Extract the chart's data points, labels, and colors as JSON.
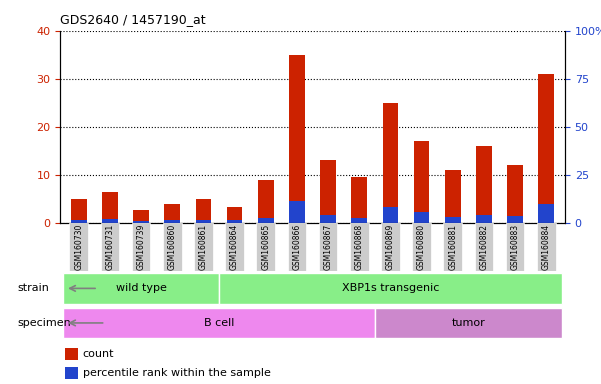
{
  "title": "GDS2640 / 1457190_at",
  "samples": [
    "GSM160730",
    "GSM160731",
    "GSM160739",
    "GSM160860",
    "GSM160861",
    "GSM160864",
    "GSM160865",
    "GSM160866",
    "GSM160867",
    "GSM160868",
    "GSM160869",
    "GSM160880",
    "GSM160881",
    "GSM160882",
    "GSM160883",
    "GSM160884"
  ],
  "count": [
    5,
    6.5,
    2.7,
    4,
    5,
    3.2,
    9,
    35,
    13,
    9.5,
    25,
    17,
    11,
    16,
    12,
    31
  ],
  "percentile": [
    1.5,
    2,
    1,
    1.2,
    1.4,
    1.2,
    2.5,
    11.5,
    4,
    2.5,
    8,
    5.5,
    3,
    4,
    3.5,
    9.5
  ],
  "ylim_left": [
    0,
    40
  ],
  "ylim_right": [
    0,
    100
  ],
  "yticks_left": [
    0,
    10,
    20,
    30,
    40
  ],
  "yticks_right": [
    0,
    25,
    50,
    75,
    100
  ],
  "bar_color_red": "#cc2200",
  "bar_color_blue": "#2244cc",
  "strain_labels": [
    "wild type",
    "XBP1s transgenic"
  ],
  "strain_ranges": [
    [
      0,
      5
    ],
    [
      5,
      16
    ]
  ],
  "strain_color": "#88ee88",
  "specimen_labels": [
    "B cell",
    "tumor"
  ],
  "specimen_ranges": [
    [
      0,
      10
    ],
    [
      10,
      16
    ]
  ],
  "specimen_color_bcell": "#ee88ee",
  "specimen_color_tumor": "#cc88cc",
  "xticklabel_bg": "#cccccc",
  "legend_count_label": "count",
  "legend_pct_label": "percentile rank within the sample"
}
